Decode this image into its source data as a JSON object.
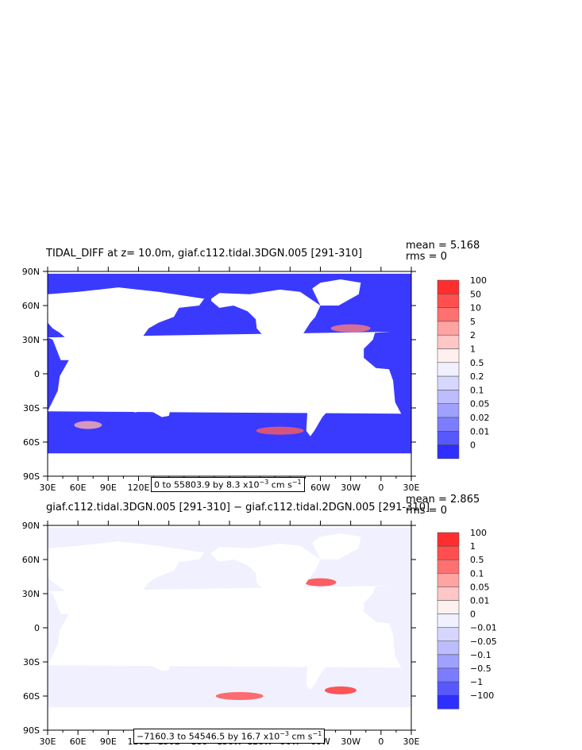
{
  "chart_data": [
    {
      "type": "heatmap",
      "title": "TIDAL_DIFF at z=  10.0m, giaf.c112.tidal.3DGN.005 [291-310]",
      "stats": {
        "mean_label": "mean = 5.168",
        "rms_label": "rms = 0"
      },
      "xticks": [
        "30E",
        "60E",
        "90E",
        "120E",
        "150E",
        "180",
        "150W",
        "120W",
        "90W",
        "60W",
        "30W",
        "0",
        "30E"
      ],
      "yticks": [
        "90N",
        "60N",
        "30N",
        "0",
        "30S",
        "60S",
        "90S"
      ],
      "xlim": [
        "30E",
        "30E"
      ],
      "ylim": [
        "90S",
        "90N"
      ],
      "legend": {
        "labels": [
          "100",
          "50",
          "10",
          "5",
          "2",
          "1",
          "0.5",
          "0.2",
          "0.1",
          "0.05",
          "0.02",
          "0.01",
          "0"
        ],
        "colors": [
          "#ff2e2e",
          "#ff4f4f",
          "#ff7070",
          "#ffa3a3",
          "#ffc6c6",
          "#fff0f0",
          "#f0f0ff",
          "#d6d6ff",
          "#bcbcff",
          "#a0a0ff",
          "#7c7cff",
          "#5858ff",
          "#2e2eff"
        ]
      },
      "range_text": {
        "prefix": "0 to 55803.9 by 8.3 x10",
        "exp": "−3",
        "unit": " cm s",
        "unit_exp": "−1"
      },
      "ocean_color": "#3a3aff",
      "land_color": "#ffffff"
    },
    {
      "type": "heatmap",
      "title": "giaf.c112.tidal.3DGN.005 [291-310] − giaf.c112.tidal.2DGN.005 [291-310]",
      "stats": {
        "mean_label": "mean = 2.865",
        "rms_label": "rms = 0"
      },
      "xticks": [
        "30E",
        "60E",
        "90E",
        "120E",
        "150E",
        "180",
        "150W",
        "120W",
        "90W",
        "60W",
        "30W",
        "0",
        "30E"
      ],
      "yticks": [
        "90N",
        "60N",
        "30N",
        "0",
        "30S",
        "60S",
        "90S"
      ],
      "xlim": [
        "30E",
        "30E"
      ],
      "ylim": [
        "90S",
        "90N"
      ],
      "legend": {
        "labels": [
          "100",
          "1",
          "0.5",
          "0.1",
          "0.05",
          "0.01",
          "0",
          "−0.01",
          "−0.05",
          "−0.1",
          "−0.5",
          "−1",
          "−100"
        ],
        "colors": [
          "#ff2e2e",
          "#ff4f4f",
          "#ff7070",
          "#ffa3a3",
          "#ffc6c6",
          "#fff0f0",
          "#f0f0ff",
          "#d6d6ff",
          "#bcbcff",
          "#a0a0ff",
          "#7c7cff",
          "#5858ff",
          "#2e2eff"
        ]
      },
      "range_text": {
        "prefix": "−7160.3 to 54546.5 by 16.7 x10",
        "exp": "−3",
        "unit": " cm s",
        "unit_exp": "−1"
      },
      "ocean_color": "#f0f0ff",
      "land_color": "#ffffff"
    }
  ]
}
